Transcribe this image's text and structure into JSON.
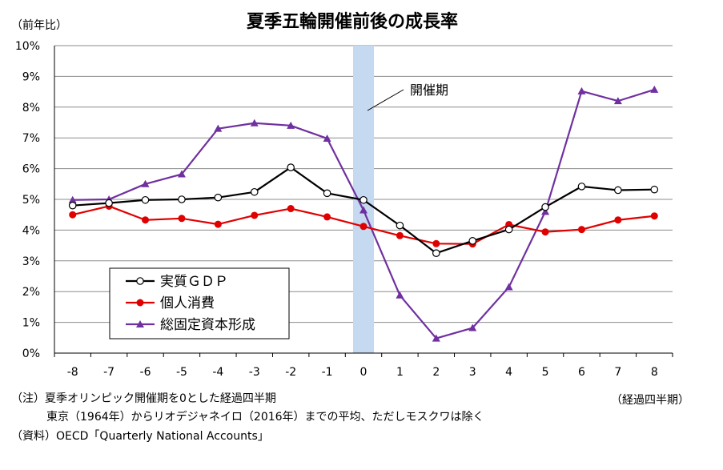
{
  "chart_data": {
    "type": "line",
    "title": "夏季五輪開催前後の成長率",
    "ylabel": "（前年比）",
    "xlabel": "（経過四半期）",
    "x": [
      -8,
      -7,
      -6,
      -5,
      -4,
      -3,
      -2,
      -1,
      0,
      1,
      2,
      3,
      4,
      5,
      6,
      7,
      8
    ],
    "ylim": [
      0,
      10
    ],
    "yticks": [
      "0%",
      "1%",
      "2%",
      "3%",
      "4%",
      "5%",
      "6%",
      "7%",
      "8%",
      "9%",
      "10%"
    ],
    "grid": true,
    "legend_position": "lower-left",
    "highlight": {
      "x": 0,
      "label": "開催期",
      "color": "#c5d9f1"
    },
    "series": [
      {
        "name": "実質ＧＤＰ",
        "color": "#000000",
        "marker": "open-circle",
        "values": [
          4.8,
          4.88,
          4.98,
          5.0,
          5.06,
          5.24,
          6.04,
          5.2,
          4.98,
          4.15,
          3.25,
          3.65,
          4.02,
          4.75,
          5.42,
          5.3,
          5.32
        ]
      },
      {
        "name": "個人消費",
        "color": "#e00000",
        "marker": "filled-circle",
        "values": [
          4.5,
          4.78,
          4.33,
          4.38,
          4.19,
          4.48,
          4.7,
          4.43,
          4.12,
          3.82,
          3.56,
          3.55,
          4.18,
          3.94,
          4.02,
          4.33,
          4.46
        ]
      },
      {
        "name": "総固定資本形成",
        "color": "#7030a0",
        "marker": "triangle",
        "values": [
          4.98,
          5.0,
          5.5,
          5.82,
          7.3,
          7.48,
          7.4,
          6.98,
          4.65,
          1.88,
          0.48,
          0.82,
          2.15,
          4.6,
          8.52,
          8.2,
          8.57
        ]
      }
    ]
  },
  "notes": {
    "line1": "（注）夏季オリンピック開催期を0とした経過四半期",
    "line2": "東京（1964年）からリオデジャネイロ（2016年）までの平均、ただしモスクワは除く",
    "line3": "（資料）OECD「Quarterly National Accounts」"
  }
}
